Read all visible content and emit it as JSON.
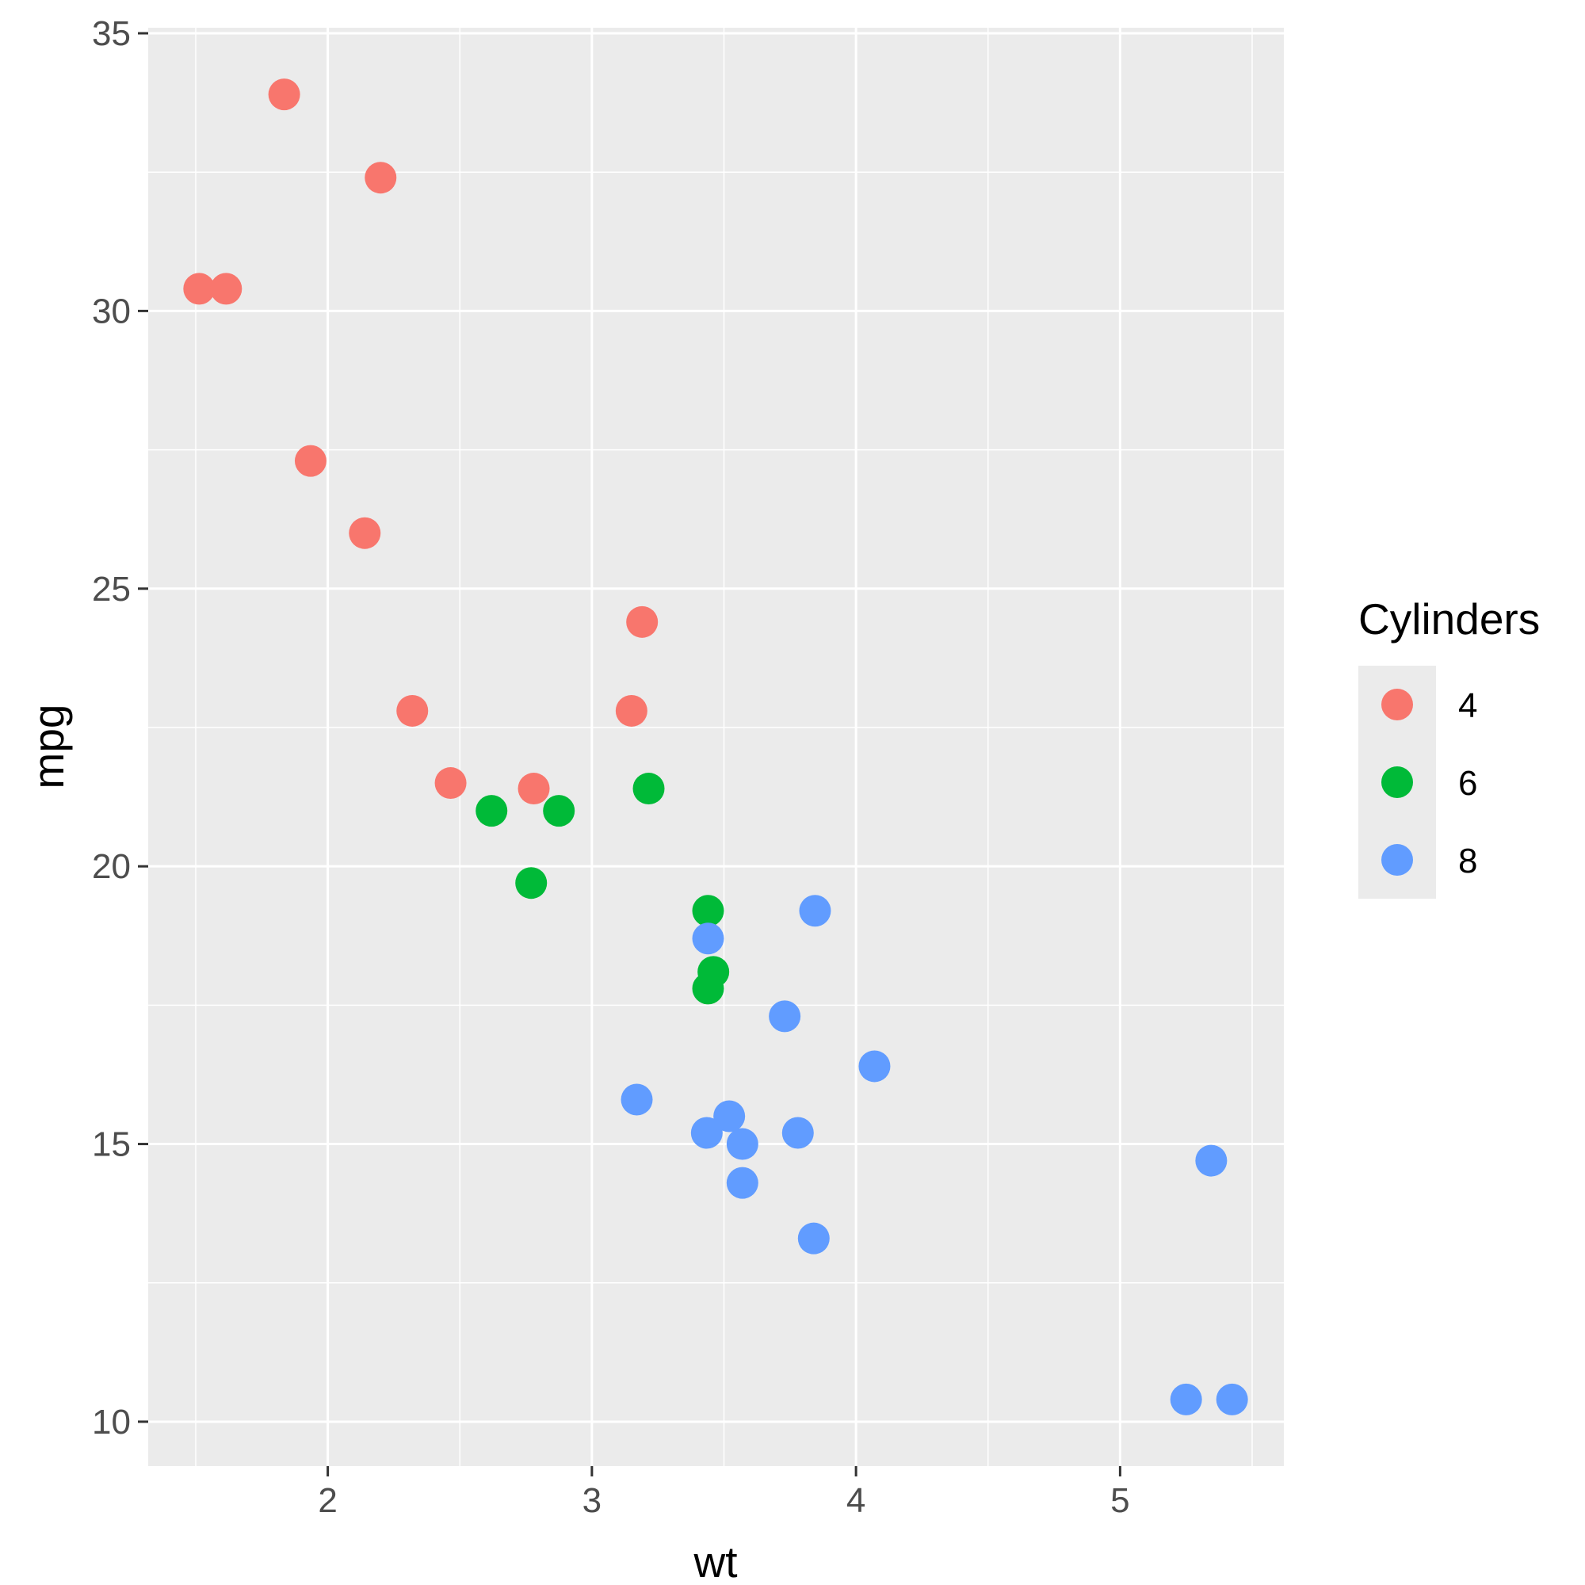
{
  "chart_data": {
    "type": "scatter",
    "xlabel": "wt",
    "ylabel": "mpg",
    "xlim": [
      1.32,
      5.62
    ],
    "ylim": [
      9.2,
      35.1
    ],
    "x_ticks": [
      2,
      3,
      4,
      5
    ],
    "y_ticks": [
      10,
      15,
      20,
      25,
      30,
      35
    ],
    "grid": true,
    "legend": {
      "title": "Cylinders",
      "placement": "right"
    },
    "series": [
      {
        "name": "4",
        "color": "#F8766D",
        "points": [
          {
            "x": 1.835,
            "y": 33.9
          },
          {
            "x": 2.2,
            "y": 32.4
          },
          {
            "x": 1.513,
            "y": 30.4
          },
          {
            "x": 1.615,
            "y": 30.4
          },
          {
            "x": 1.935,
            "y": 27.3
          },
          {
            "x": 2.14,
            "y": 26.0
          },
          {
            "x": 3.19,
            "y": 24.4
          },
          {
            "x": 2.32,
            "y": 22.8
          },
          {
            "x": 3.15,
            "y": 22.8
          },
          {
            "x": 2.465,
            "y": 21.5
          },
          {
            "x": 2.78,
            "y": 21.4
          }
        ]
      },
      {
        "name": "6",
        "color": "#00BA38",
        "points": [
          {
            "x": 3.215,
            "y": 21.4
          },
          {
            "x": 2.62,
            "y": 21.0
          },
          {
            "x": 2.875,
            "y": 21.0
          },
          {
            "x": 2.77,
            "y": 19.7
          },
          {
            "x": 3.44,
            "y": 19.2
          },
          {
            "x": 3.46,
            "y": 18.1
          },
          {
            "x": 3.44,
            "y": 17.8
          }
        ]
      },
      {
        "name": "8",
        "color": "#619CFF",
        "points": [
          {
            "x": 3.845,
            "y": 19.2
          },
          {
            "x": 3.44,
            "y": 18.7
          },
          {
            "x": 3.73,
            "y": 17.3
          },
          {
            "x": 4.07,
            "y": 16.4
          },
          {
            "x": 3.17,
            "y": 15.8
          },
          {
            "x": 3.52,
            "y": 15.5
          },
          {
            "x": 3.435,
            "y": 15.2
          },
          {
            "x": 3.78,
            "y": 15.2
          },
          {
            "x": 3.57,
            "y": 15.0
          },
          {
            "x": 5.345,
            "y": 14.7
          },
          {
            "x": 3.57,
            "y": 14.3
          },
          {
            "x": 3.84,
            "y": 13.3
          },
          {
            "x": 5.25,
            "y": 10.4
          },
          {
            "x": 5.424,
            "y": 10.4
          }
        ]
      }
    ]
  }
}
